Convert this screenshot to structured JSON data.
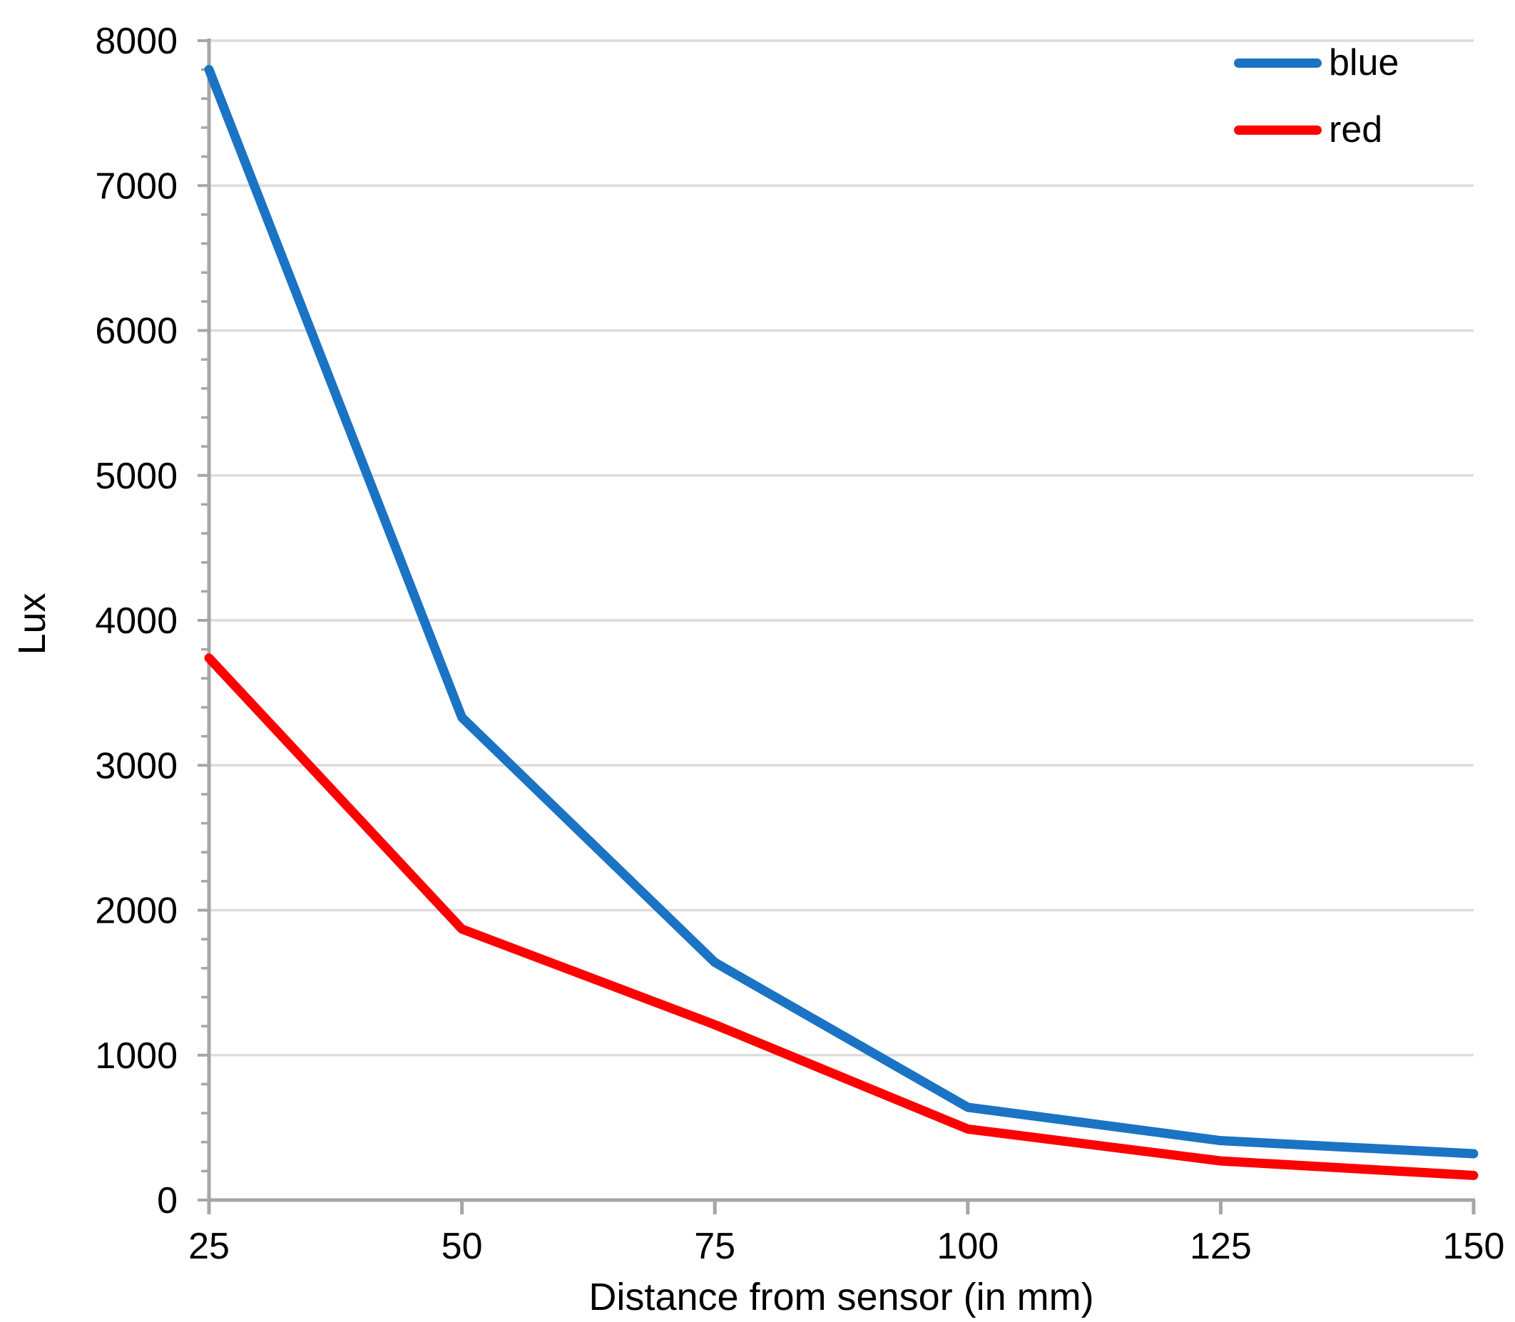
{
  "chart_data": {
    "type": "line",
    "title": "",
    "xlabel": "Distance from sensor (in mm)",
    "ylabel": "Lux",
    "x": [
      25,
      50,
      75,
      100,
      125,
      150
    ],
    "series": [
      {
        "name": "blue",
        "color": "#1B73C4",
        "values": [
          7800,
          3330,
          1640,
          640,
          410,
          320
        ]
      },
      {
        "name": "red",
        "color": "#FF0000",
        "values": [
          3740,
          1870,
          1210,
          490,
          270,
          170
        ]
      }
    ],
    "xlim": [
      25,
      150
    ],
    "ylim": [
      0,
      8000
    ],
    "x_ticks": [
      25,
      50,
      75,
      100,
      125,
      150
    ],
    "y_ticks": [
      0,
      1000,
      2000,
      3000,
      4000,
      5000,
      6000,
      7000,
      8000
    ],
    "y_minor_step": 200,
    "grid": "horizontal",
    "legend_position": "top-right"
  },
  "colors": {
    "axis": "#A6A6A6",
    "gridline": "#DCDCDC",
    "background": "#FFFFFF",
    "text": "#000000"
  }
}
